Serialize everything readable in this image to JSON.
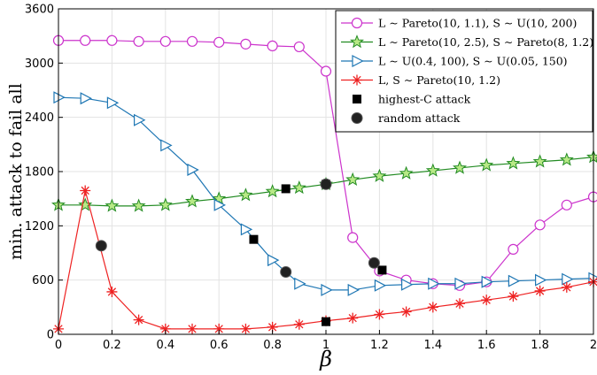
{
  "chart_data": {
    "type": "line",
    "title": "",
    "xlabel": "β",
    "ylabel": "min. attack to fail all",
    "xlim": [
      0,
      2
    ],
    "ylim": [
      0,
      3600
    ],
    "xticks": [
      0,
      0.2,
      0.4,
      0.6,
      0.8,
      1,
      1.2,
      1.4,
      1.6,
      1.8,
      2
    ],
    "xtick_labels": [
      "0",
      "0.2",
      "0.4",
      "0.6",
      "0.8",
      "1",
      "1.2",
      "1.4",
      "1.6",
      "1.8",
      "2"
    ],
    "yticks": [
      0,
      600,
      1200,
      1800,
      2400,
      3000,
      3600
    ],
    "ytick_labels": [
      "0",
      "600",
      "1200",
      "1800",
      "2400",
      "3000",
      "3600"
    ],
    "grid": true,
    "legend_position": "top-right",
    "series": [
      {
        "name": "L ∼ Pareto(10, 1.1), S ∼ U(10, 200)",
        "color": "#cc33cc",
        "marker": "circle",
        "x": [
          0,
          0.1,
          0.2,
          0.3,
          0.4,
          0.5,
          0.6,
          0.7,
          0.8,
          0.9,
          1.0,
          1.1,
          1.2,
          1.3,
          1.4,
          1.5,
          1.6,
          1.7,
          1.8,
          1.9,
          2.0
        ],
        "y": [
          3250,
          3250,
          3250,
          3240,
          3240,
          3240,
          3230,
          3210,
          3190,
          3180,
          2910,
          1070,
          700,
          600,
          560,
          540,
          580,
          940,
          1210,
          1430,
          1520
        ]
      },
      {
        "name": "L ∼ Pareto(10, 2.5), S ∼ Pareto(8, 1.2)",
        "color": "#228b22",
        "marker": "star",
        "x": [
          0,
          0.1,
          0.2,
          0.3,
          0.4,
          0.5,
          0.6,
          0.7,
          0.8,
          0.9,
          1.0,
          1.1,
          1.2,
          1.3,
          1.4,
          1.5,
          1.6,
          1.7,
          1.8,
          1.9,
          2.0
        ],
        "y": [
          1430,
          1430,
          1420,
          1420,
          1430,
          1470,
          1500,
          1540,
          1580,
          1620,
          1660,
          1710,
          1750,
          1780,
          1810,
          1840,
          1870,
          1890,
          1910,
          1930,
          1960
        ]
      },
      {
        "name": "L ∼ U(0.4, 100), S ∼ U(0.05, 150)",
        "color": "#1f77b4",
        "marker": "triangle-right",
        "x": [
          0,
          0.1,
          0.2,
          0.3,
          0.4,
          0.5,
          0.6,
          0.7,
          0.8,
          0.9,
          1.0,
          1.1,
          1.2,
          1.3,
          1.4,
          1.5,
          1.6,
          1.7,
          1.8,
          1.9,
          2.0
        ],
        "y": [
          2620,
          2610,
          2560,
          2370,
          2090,
          1820,
          1430,
          1160,
          820,
          560,
          490,
          490,
          540,
          550,
          560,
          560,
          580,
          590,
          600,
          610,
          620
        ]
      },
      {
        "name": "L, S ∼ Pareto(10, 1.2)",
        "color": "#ee2222",
        "marker": "asterisk",
        "x": [
          0,
          0.1,
          0.2,
          0.3,
          0.4,
          0.5,
          0.6,
          0.7,
          0.8,
          0.9,
          1.0,
          1.1,
          1.2,
          1.3,
          1.4,
          1.5,
          1.6,
          1.7,
          1.8,
          1.9,
          2.0
        ],
        "y": [
          60,
          1590,
          470,
          160,
          60,
          60,
          60,
          60,
          80,
          110,
          150,
          180,
          220,
          250,
          300,
          340,
          380,
          420,
          480,
          520,
          580
        ]
      }
    ],
    "markers": [
      {
        "name": "highest-C attack",
        "color": "#000000",
        "marker": "square",
        "points": [
          {
            "x": 0.73,
            "y": 1050
          },
          {
            "x": 0.85,
            "y": 1610
          },
          {
            "x": 1.0,
            "y": 1660
          },
          {
            "x": 1.0,
            "y": 140
          },
          {
            "x": 1.21,
            "y": 710
          }
        ]
      },
      {
        "name": "random attack",
        "color": "#000000",
        "marker": "circle-filled",
        "points": [
          {
            "x": 0.16,
            "y": 980
          },
          {
            "x": 0.85,
            "y": 690
          },
          {
            "x": 1.0,
            "y": 1660
          },
          {
            "x": 1.18,
            "y": 790
          }
        ]
      }
    ]
  }
}
